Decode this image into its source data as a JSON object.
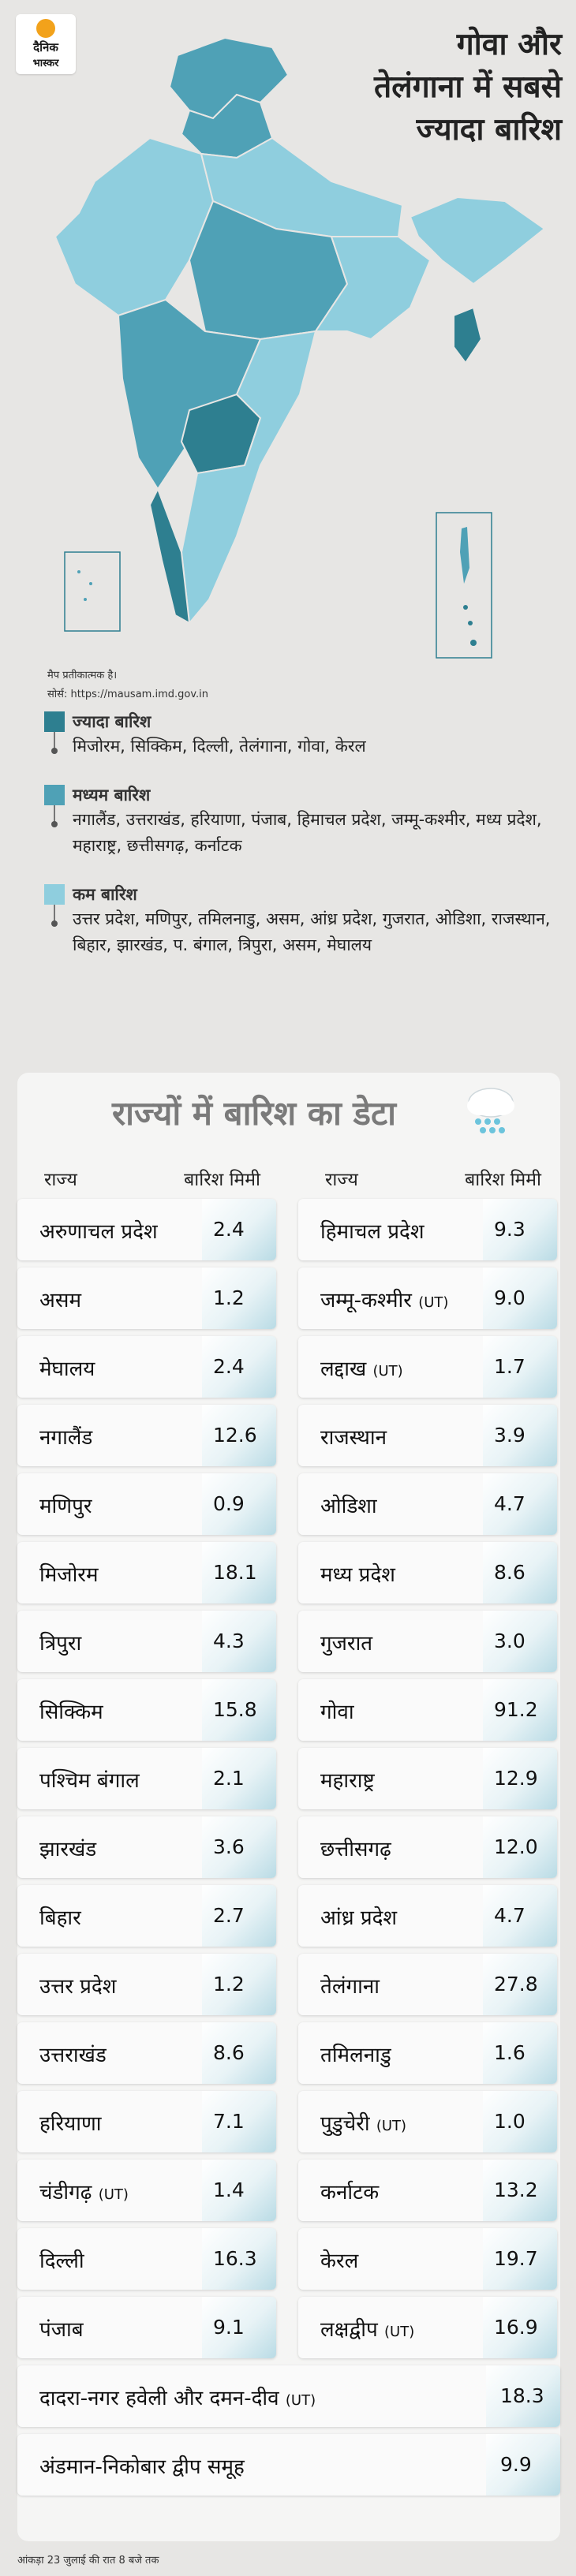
{
  "logo": {
    "line1": "दैनिक",
    "line2": "भास्कर"
  },
  "headline": [
    "गोवा और",
    "तेलंगाना में सबसे",
    "ज्यादा बारिश"
  ],
  "map": {
    "note": "मैप प्रतीकात्मक है।",
    "source": "सोर्स: https://mausam.imd.gov.in",
    "colors": {
      "high": "#2e7f90",
      "medium": "#4fa1b6",
      "low": "#8fcede"
    }
  },
  "legend": [
    {
      "title": "ज्यादा बारिश",
      "color": "#2e7f90",
      "states": "मिजोरम, सिक्किम, दिल्ली, तेलंगाना, गोवा, केरल"
    },
    {
      "title": "मध्यम बारिश",
      "color": "#4fa1b6",
      "states": "नगालैंड, उत्तराखंड, हरियाणा, पंजाब, हिमाचल प्रदेश, जम्मू-कश्मीर, मध्य प्रदेश, महाराष्ट्र, छत्तीसगढ़, कर्नाटक"
    },
    {
      "title": "कम बारिश",
      "color": "#8fcede",
      "states": "उत्तर प्रदेश, मणिपुर, तमिलनाडु, असम, आंध्र प्रदेश, गुजरात, ओडिशा, राजस्थान, बिहार, झारखंड, प. बंगाल, त्रिपुरा, असम, मेघालय"
    }
  ],
  "table": {
    "title": "राज्यों में बारिश का डेटा",
    "col_state": "राज्य",
    "col_rain": "बारिश मिमी",
    "left": [
      {
        "name": "अरुणाचल प्रदेश",
        "ut": "",
        "value": "2.4"
      },
      {
        "name": "असम",
        "ut": "",
        "value": "1.2"
      },
      {
        "name": "मेघालय",
        "ut": "",
        "value": "2.4"
      },
      {
        "name": "नगालैंड",
        "ut": "",
        "value": "12.6"
      },
      {
        "name": "मणिपुर",
        "ut": "",
        "value": "0.9"
      },
      {
        "name": "मिजोरम",
        "ut": "",
        "value": "18.1"
      },
      {
        "name": "त्रिपुरा",
        "ut": "",
        "value": "4.3"
      },
      {
        "name": "सिक्किम",
        "ut": "",
        "value": "15.8"
      },
      {
        "name": "पश्चिम बंगाल",
        "ut": "",
        "value": "2.1"
      },
      {
        "name": "झारखंड",
        "ut": "",
        "value": "3.6"
      },
      {
        "name": "बिहार",
        "ut": "",
        "value": "2.7"
      },
      {
        "name": "उत्तर प्रदेश",
        "ut": "",
        "value": "1.2"
      },
      {
        "name": "उत्तराखंड",
        "ut": "",
        "value": "8.6"
      },
      {
        "name": "हरियाणा",
        "ut": "",
        "value": "7.1"
      },
      {
        "name": "चंडीगढ़",
        "ut": "(UT)",
        "value": "1.4"
      },
      {
        "name": "दिल्ली",
        "ut": "",
        "value": "16.3"
      },
      {
        "name": "पंजाब",
        "ut": "",
        "value": "9.1"
      }
    ],
    "right": [
      {
        "name": "हिमाचल प्रदेश",
        "ut": "",
        "value": "9.3"
      },
      {
        "name": "जम्मू-कश्मीर",
        "ut": "(UT)",
        "value": "9.0"
      },
      {
        "name": "लद्दाख",
        "ut": "(UT)",
        "value": "1.7"
      },
      {
        "name": "राजस्थान",
        "ut": "",
        "value": "3.9"
      },
      {
        "name": "ओडिशा",
        "ut": "",
        "value": "4.7"
      },
      {
        "name": "मध्य प्रदेश",
        "ut": "",
        "value": "8.6"
      },
      {
        "name": "गुजरात",
        "ut": "",
        "value": "3.0"
      },
      {
        "name": "गोवा",
        "ut": "",
        "value": "91.2"
      },
      {
        "name": "महाराष्ट्र",
        "ut": "",
        "value": "12.9"
      },
      {
        "name": "छत्तीसगढ़",
        "ut": "",
        "value": "12.0"
      },
      {
        "name": "आंध्र प्रदेश",
        "ut": "",
        "value": "4.7"
      },
      {
        "name": "तेलंगाना",
        "ut": "",
        "value": "27.8"
      },
      {
        "name": "तमिलनाडु",
        "ut": "",
        "value": "1.6"
      },
      {
        "name": "पुडुचेरी",
        "ut": "(UT)",
        "value": "1.0"
      },
      {
        "name": "कर्नाटक",
        "ut": "",
        "value": "13.2"
      },
      {
        "name": "केरल",
        "ut": "",
        "value": "19.7"
      },
      {
        "name": "लक्षद्वीप",
        "ut": "(UT)",
        "value": "16.9"
      }
    ],
    "wide": [
      {
        "name": "दादरा-नगर हवेली और दमन-दीव",
        "ut": "(UT)",
        "value": "18.3"
      },
      {
        "name": "अंडमान-निकोबार द्वीप समूह",
        "ut": "",
        "value": "9.9"
      }
    ]
  },
  "footnote": "आंकड़ा 23 जुलाई की रात 8 बजे तक"
}
